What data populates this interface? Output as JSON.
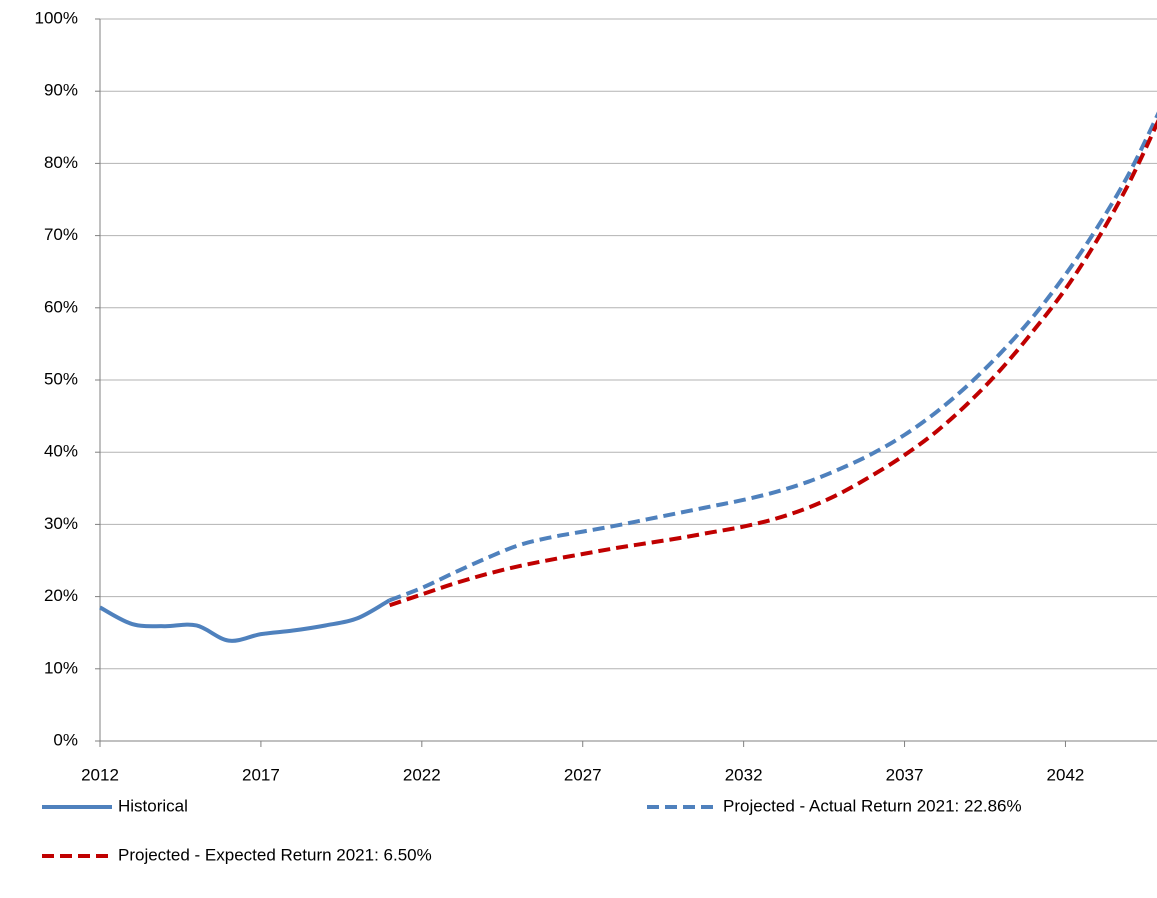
{
  "chart_data": {
    "type": "line",
    "xlim": [
      2012,
      2045
    ],
    "xticks": [
      2012,
      2017,
      2022,
      2027,
      2032,
      2037,
      2042
    ],
    "ylim": [
      0,
      100
    ],
    "yticks": [
      {
        "value": 0,
        "label": "0%"
      },
      {
        "value": 10,
        "label": "10%"
      },
      {
        "value": 20,
        "label": "20%"
      },
      {
        "value": 30,
        "label": "30%"
      },
      {
        "value": 40,
        "label": "40%"
      },
      {
        "value": 50,
        "label": "50%"
      },
      {
        "value": 60,
        "label": "60%"
      },
      {
        "value": 70,
        "label": "70%"
      },
      {
        "value": 80,
        "label": "80%"
      },
      {
        "value": 90,
        "label": "90%"
      },
      {
        "value": 100,
        "label": "100%"
      }
    ],
    "grid": true,
    "legend": "bottom",
    "series": [
      {
        "name": "Historical",
        "color": "#4f81bd",
        "dash": "solid",
        "x": [
          2012,
          2013,
          2014,
          2015,
          2016,
          2017,
          2018,
          2019,
          2020,
          2021
        ],
        "values": [
          18.5,
          16.2,
          15.9,
          16.0,
          13.9,
          14.8,
          15.3,
          16.0,
          17.0,
          19.5
        ]
      },
      {
        "name": "Projected - Actual Return 2021: 22.86%",
        "color": "#4f81bd",
        "dash": "dashed",
        "x": [
          2021,
          2022,
          2023,
          2024,
          2025,
          2026,
          2027,
          2028,
          2029,
          2030,
          2031,
          2032,
          2033,
          2034,
          2035,
          2036,
          2037,
          2038,
          2039,
          2040,
          2041,
          2042,
          2043,
          2044,
          2045
        ],
        "values": [
          19.5,
          21.2,
          23.3,
          25.3,
          27.1,
          28.2,
          29.0,
          29.8,
          30.7,
          31.6,
          32.5,
          33.4,
          34.5,
          35.9,
          37.7,
          39.8,
          42.4,
          45.6,
          49.4,
          53.8,
          58.8,
          64.6,
          71.2,
          78.8,
          88.0
        ]
      },
      {
        "name": "Projected - Expected Return 2021: 6.50%",
        "color": "#c00000",
        "dash": "dashed",
        "x": [
          2021,
          2022,
          2023,
          2024,
          2025,
          2026,
          2027,
          2028,
          2029,
          2030,
          2031,
          2032,
          2033,
          2034,
          2035,
          2036,
          2037,
          2038,
          2039,
          2040,
          2041,
          2042,
          2043,
          2044,
          2045
        ],
        "values": [
          18.8,
          20.3,
          21.8,
          23.1,
          24.2,
          25.1,
          25.9,
          26.7,
          27.4,
          28.1,
          28.9,
          29.7,
          30.8,
          32.3,
          34.3,
          36.8,
          39.6,
          42.9,
          46.9,
          51.5,
          56.8,
          62.6,
          69.5,
          77.5,
          87.0
        ]
      }
    ]
  }
}
